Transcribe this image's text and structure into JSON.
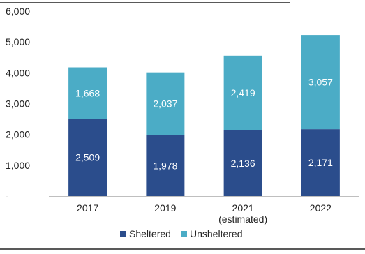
{
  "chart_data": {
    "type": "bar",
    "stacked": true,
    "categories": [
      "2017",
      "2019",
      "2021",
      "2022"
    ],
    "category_sublabels": [
      "",
      "",
      "(estimated)",
      ""
    ],
    "series": [
      {
        "name": "Sheltered",
        "values": [
          2509,
          1978,
          2136,
          2171
        ],
        "labels": [
          "2,509",
          "1,978",
          "2,136",
          "2,171"
        ],
        "color": "#2b4d8c"
      },
      {
        "name": "Unsheltered",
        "values": [
          1668,
          2037,
          2419,
          3057
        ],
        "labels": [
          "1,668",
          "2,037",
          "2,419",
          "3,057"
        ],
        "color": "#4bacc6"
      }
    ],
    "ylim": [
      0,
      6000
    ],
    "yticks": [
      0,
      1000,
      2000,
      3000,
      4000,
      5000,
      6000
    ],
    "ytick_labels": [
      "-",
      "1,000",
      "2,000",
      "3,000",
      "4,000",
      "5,000",
      "6,000"
    ],
    "grid": false,
    "legend": "bottom-center"
  }
}
